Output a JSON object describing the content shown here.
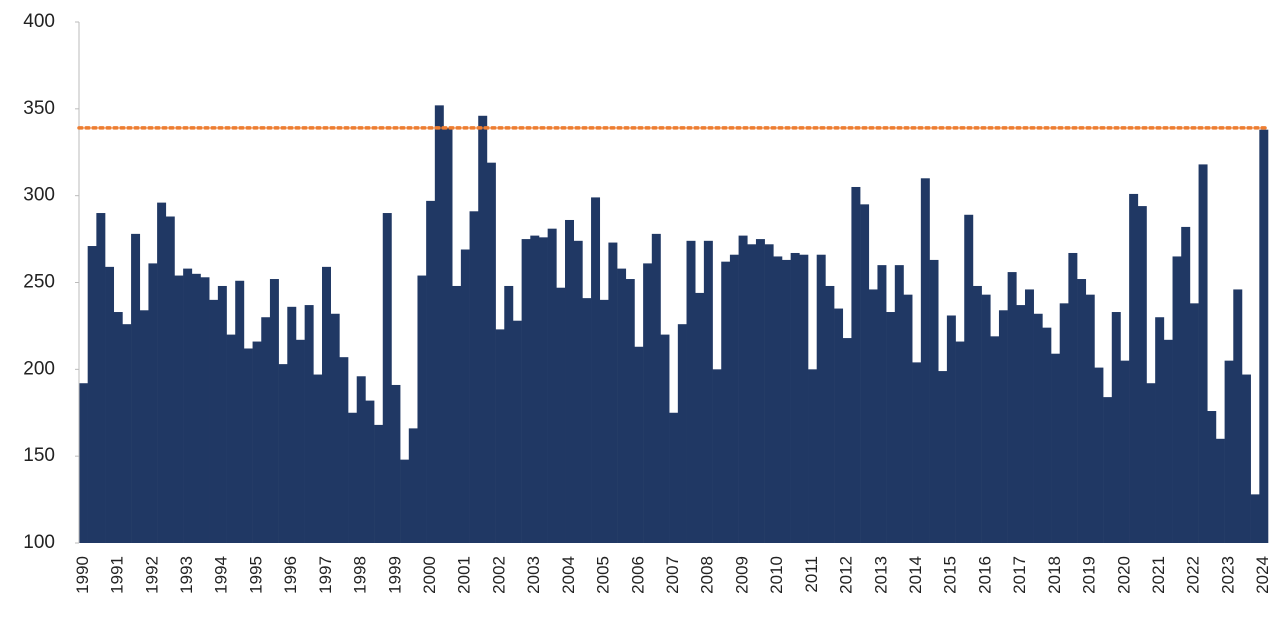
{
  "chart_data": {
    "type": "bar",
    "categories": [
      "1990",
      null,
      null,
      null,
      "1991",
      null,
      null,
      null,
      "1992",
      null,
      null,
      null,
      "1993",
      null,
      null,
      null,
      "1994",
      null,
      null,
      null,
      "1995",
      null,
      null,
      null,
      "1996",
      null,
      null,
      null,
      "1997",
      null,
      null,
      null,
      "1998",
      null,
      null,
      null,
      "1999",
      null,
      null,
      null,
      "2000",
      null,
      null,
      null,
      "2001",
      null,
      null,
      null,
      "2002",
      null,
      null,
      null,
      "2003",
      null,
      null,
      null,
      "2004",
      null,
      null,
      null,
      "2005",
      null,
      null,
      null,
      "2006",
      null,
      null,
      null,
      "2007",
      null,
      null,
      null,
      "2008",
      null,
      null,
      null,
      "2009",
      null,
      null,
      null,
      "2010",
      null,
      null,
      null,
      "2011",
      null,
      null,
      null,
      "2012",
      null,
      null,
      null,
      "2013",
      null,
      null,
      null,
      "2014",
      null,
      null,
      null,
      "2015",
      null,
      null,
      null,
      "2016",
      null,
      null,
      null,
      "2017",
      null,
      null,
      null,
      "2018",
      null,
      null,
      null,
      "2019",
      null,
      null,
      null,
      "2020",
      null,
      null,
      null,
      "2021",
      null,
      null,
      null,
      "2022",
      null,
      null,
      null,
      "2023",
      null,
      null,
      null,
      "2024"
    ],
    "values": [
      192,
      271,
      290,
      259,
      233,
      226,
      278,
      234,
      261,
      296,
      288,
      254,
      258,
      255,
      253,
      240,
      248,
      220,
      251,
      212,
      216,
      230,
      252,
      203,
      236,
      217,
      237,
      197,
      259,
      232,
      207,
      175,
      196,
      182,
      168,
      290,
      191,
      148,
      166,
      254,
      297,
      352,
      339,
      248,
      269,
      291,
      346,
      319,
      223,
      248,
      228,
      275,
      277,
      276,
      281,
      247,
      286,
      274,
      241,
      299,
      240,
      273,
      258,
      252,
      213,
      261,
      278,
      220,
      175,
      226,
      274,
      244,
      274,
      200,
      262,
      266,
      277,
      272,
      275,
      272,
      265,
      263,
      267,
      266,
      200,
      266,
      248,
      235,
      218,
      305,
      295,
      246,
      260,
      233,
      260,
      243,
      204,
      310,
      263,
      199,
      231,
      216,
      289,
      248,
      243,
      219,
      234,
      256,
      237,
      246,
      232,
      224,
      209,
      238,
      267,
      252,
      243,
      201,
      184,
      233,
      205,
      301,
      294,
      192,
      230,
      217,
      265,
      282,
      238,
      318,
      176,
      160,
      205,
      246,
      197,
      128,
      338
    ],
    "color": "#203864",
    "ylim": [
      100,
      400
    ],
    "yticks": [
      100,
      150,
      200,
      250,
      300,
      350,
      400
    ],
    "reference_line": {
      "value": 339,
      "color": "#ed7d31"
    }
  }
}
